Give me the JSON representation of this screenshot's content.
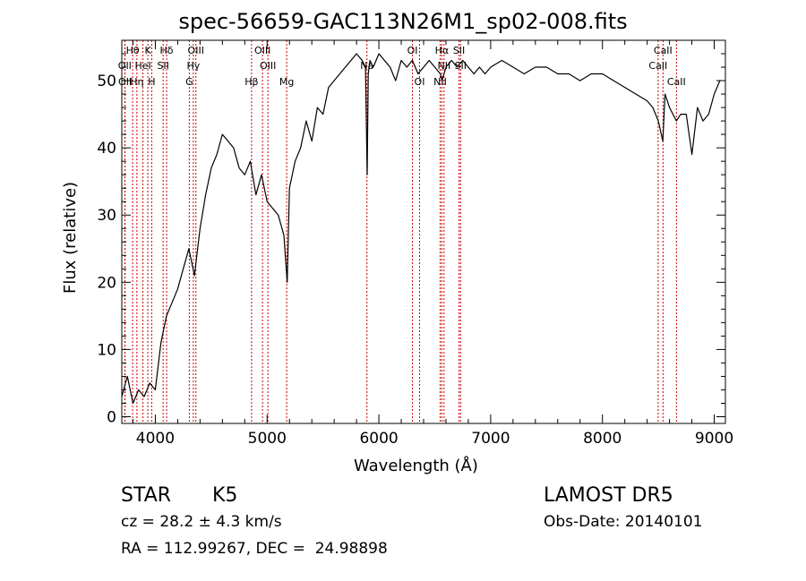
{
  "chart_data": {
    "type": "line",
    "title": "spec-56659-GAC113N26M1_sp02-008.fits",
    "xlabel": "Wavelength (Å)",
    "ylabel": "Flux (relative)",
    "xlim": [
      3700,
      9100
    ],
    "ylim": [
      -1,
      56
    ],
    "xticks": [
      4000,
      5000,
      6000,
      7000,
      8000,
      9000
    ],
    "yticks": [
      0,
      10,
      20,
      30,
      40,
      50
    ],
    "grid": false,
    "series": [
      {
        "x": [
          3700,
          3750,
          3800,
          3850,
          3900,
          3950,
          4000,
          4050,
          4100,
          4150,
          4200,
          4250,
          4300,
          4350,
          4400,
          4450,
          4500,
          4550,
          4600,
          4650,
          4700,
          4750,
          4800,
          4850,
          4900,
          4950,
          5000,
          5050,
          5100,
          5150,
          5180,
          5200,
          5250,
          5300,
          5350,
          5400,
          5450,
          5500,
          5550,
          5600,
          5650,
          5700,
          5750,
          5800,
          5850,
          5880,
          5895,
          5905,
          5920,
          5950,
          6000,
          6050,
          6100,
          6150,
          6200,
          6250,
          6300,
          6350,
          6400,
          6450,
          6500,
          6550,
          6565,
          6600,
          6650,
          6700,
          6750,
          6800,
          6850,
          6900,
          6950,
          7000,
          7100,
          7200,
          7300,
          7400,
          7500,
          7600,
          7700,
          7800,
          7900,
          8000,
          8100,
          8200,
          8300,
          8400,
          8450,
          8500,
          8540,
          8560,
          8600,
          8662,
          8700,
          8750,
          8800,
          8850,
          8900,
          8950,
          9000,
          9050
        ],
        "values": [
          3,
          6,
          2,
          4,
          3,
          5,
          4,
          11,
          15,
          17,
          19,
          22,
          25,
          21,
          28,
          33,
          37,
          39,
          42,
          41,
          40,
          37,
          36,
          38,
          33,
          36,
          32,
          31,
          30,
          27,
          20,
          34,
          38,
          40,
          44,
          41,
          46,
          45,
          49,
          50,
          51,
          52,
          53,
          54,
          53,
          52,
          36,
          51,
          53,
          52,
          54,
          53,
          52,
          50,
          53,
          52,
          53,
          51,
          52,
          53,
          52,
          51,
          50,
          52,
          53,
          52,
          53,
          52,
          51,
          52,
          51,
          52,
          53,
          52,
          51,
          52,
          52,
          51,
          51,
          50,
          51,
          51,
          50,
          49,
          48,
          47,
          46,
          44,
          41,
          48,
          46,
          44,
          45,
          45,
          39,
          46,
          44,
          45,
          48,
          50
        ]
      }
    ],
    "line_markers": [
      {
        "label": "Hθ",
        "x": 3797,
        "row": 1
      },
      {
        "label": "K",
        "x": 3933,
        "row": 1
      },
      {
        "label": "Hδ",
        "x": 4101,
        "row": 1
      },
      {
        "label": "OIII",
        "x": 4363,
        "row": 1
      },
      {
        "label": "OIII",
        "x": 4959,
        "row": 1
      },
      {
        "label": "OI",
        "x": 6300,
        "row": 1
      },
      {
        "label": "Hα",
        "x": 6563,
        "row": 1
      },
      {
        "label": "SII",
        "x": 6717,
        "row": 1
      },
      {
        "label": "CaII",
        "x": 8542,
        "row": 1
      },
      {
        "label": "OII",
        "x": 3727,
        "row": 2
      },
      {
        "label": "HeI",
        "x": 3889,
        "row": 2
      },
      {
        "label": "SII",
        "x": 4070,
        "row": 2
      },
      {
        "label": "Hγ",
        "x": 4340,
        "row": 2
      },
      {
        "label": "OIII",
        "x": 5007,
        "row": 2
      },
      {
        "label": "Na",
        "x": 5893,
        "row": 2
      },
      {
        "label": "NII",
        "x": 6583,
        "row": 2
      },
      {
        "label": "SII",
        "x": 6731,
        "row": 2
      },
      {
        "label": "CaII",
        "x": 8498,
        "row": 2
      },
      {
        "label": "OII",
        "x": 3729,
        "row": 3
      },
      {
        "label": "Hη",
        "x": 3835,
        "row": 3
      },
      {
        "label": "H",
        "x": 3968,
        "row": 3
      },
      {
        "label": "G",
        "x": 4304,
        "row": 3
      },
      {
        "label": "Hβ",
        "x": 4861,
        "row": 3
      },
      {
        "label": "Mg",
        "x": 5175,
        "row": 3
      },
      {
        "label": "OI",
        "x": 6364,
        "row": 3
      },
      {
        "label": "NII",
        "x": 6548,
        "row": 3
      },
      {
        "label": "CaII",
        "x": 8662,
        "row": 3
      }
    ],
    "colors": {
      "spectrum": "#000000",
      "marker_lines": "#cc0000"
    }
  },
  "info": {
    "object_type": "STAR",
    "subclass": "K5",
    "survey": "LAMOST DR5",
    "cz": "cz = 28.2 ± 4.3 km/s",
    "obs_date": "Obs-Date: 20140101",
    "radec": "RA = 112.99267, DEC =  24.98898"
  }
}
